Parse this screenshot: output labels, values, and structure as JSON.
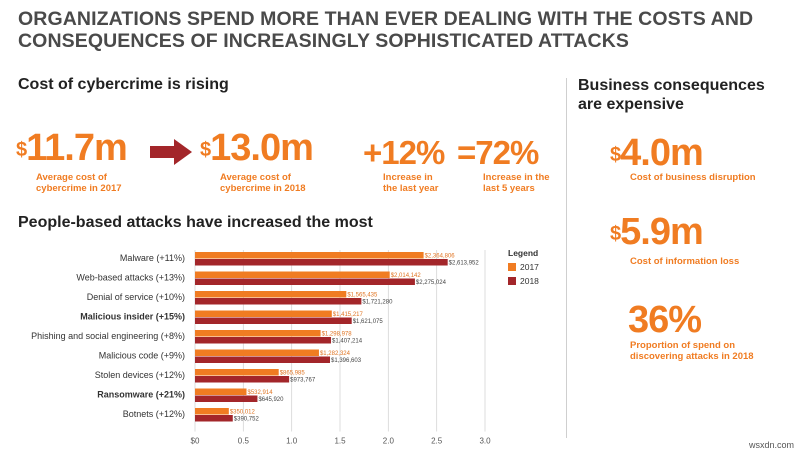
{
  "headline": {
    "line1": "ORGANIZATIONS SPEND MORE THAN EVER DEALING WITH THE COSTS AND",
    "line2": "CONSEQUENCES OF INCREASINGLY SOPHISTICATED ATTACKS"
  },
  "cost_section": {
    "title": "Cost of cybercrime is rising",
    "stats": [
      {
        "prefix": "$",
        "value": "11.7m",
        "caption1": "Average cost of",
        "caption2": "cybercrime in 2017"
      },
      {
        "prefix": "$",
        "value": "13.0m",
        "caption1": "Average cost of",
        "caption2": "cybercrime in 2018"
      },
      {
        "prefix": "",
        "value": "+12%",
        "caption1": "Increase in",
        "caption2": "the last year"
      },
      {
        "prefix": "",
        "value": "=72%",
        "caption1": "Increase in the",
        "caption2": "last 5 years"
      }
    ]
  },
  "business_section": {
    "title1": "Business consequences",
    "title2": "are expensive",
    "stats": [
      {
        "prefix": "$",
        "value": "4.0m",
        "caption1": "Cost of business disruption",
        "caption2": ""
      },
      {
        "prefix": "$",
        "value": "5.9m",
        "caption1": "Cost of information loss",
        "caption2": ""
      },
      {
        "prefix": "",
        "value": "36%",
        "caption1": "Proportion of spend on",
        "caption2": "discovering attacks in 2018"
      }
    ]
  },
  "chart_section": {
    "title": "People-based attacks have increased the most"
  },
  "chart_data": {
    "type": "bar",
    "orientation": "horizontal",
    "categories": [
      "Malware (+11%)",
      "Web-based attacks (+13%)",
      "Denial of service (+10%)",
      "Malicious insider (+15%)",
      "Phishing and social engineering (+8%)",
      "Malicious code (+9%)",
      "Stolen devices (+12%)",
      "Ransomware (+21%)",
      "Botnets (+12%)"
    ],
    "bold_categories": [
      "Malicious insider (+15%)",
      "Ransomware (+21%)"
    ],
    "series": [
      {
        "name": "2017",
        "color": "#f07c22",
        "values": [
          2.364806,
          2.014142,
          1.565435,
          1.415217,
          1.298978,
          1.282324,
          0.865985,
          0.532914,
          0.350012
        ],
        "labels": [
          "$2,364,806",
          "$2,014,142",
          "$1,565,435",
          "$1,415,217",
          "$1,298,978",
          "$1,282,324",
          "$865,985",
          "$532,914",
          "$350,012"
        ]
      },
      {
        "name": "2018",
        "color": "#a3262a",
        "values": [
          2.613952,
          2.275024,
          1.72128,
          1.621075,
          1.407214,
          1.396603,
          0.973767,
          0.64592,
          0.390752
        ],
        "labels": [
          "$2,613,952",
          "$2,275,024",
          "$1,721,280",
          "$1,621,075",
          "$1,407,214",
          "$1,396,603",
          "$973,767",
          "$645,920",
          "$390,752"
        ]
      }
    ],
    "xlim": [
      0,
      3.0
    ],
    "xticks": [
      "$0",
      "0.5",
      "1.0",
      "1.5",
      "2.0",
      "2.5",
      "3.0"
    ],
    "grid": true,
    "legend": {
      "title": "Legend",
      "placement": "right"
    }
  },
  "watermark": "wsxdn.com",
  "colors": {
    "accent": "#f07c22",
    "dark_red": "#a3262a"
  }
}
